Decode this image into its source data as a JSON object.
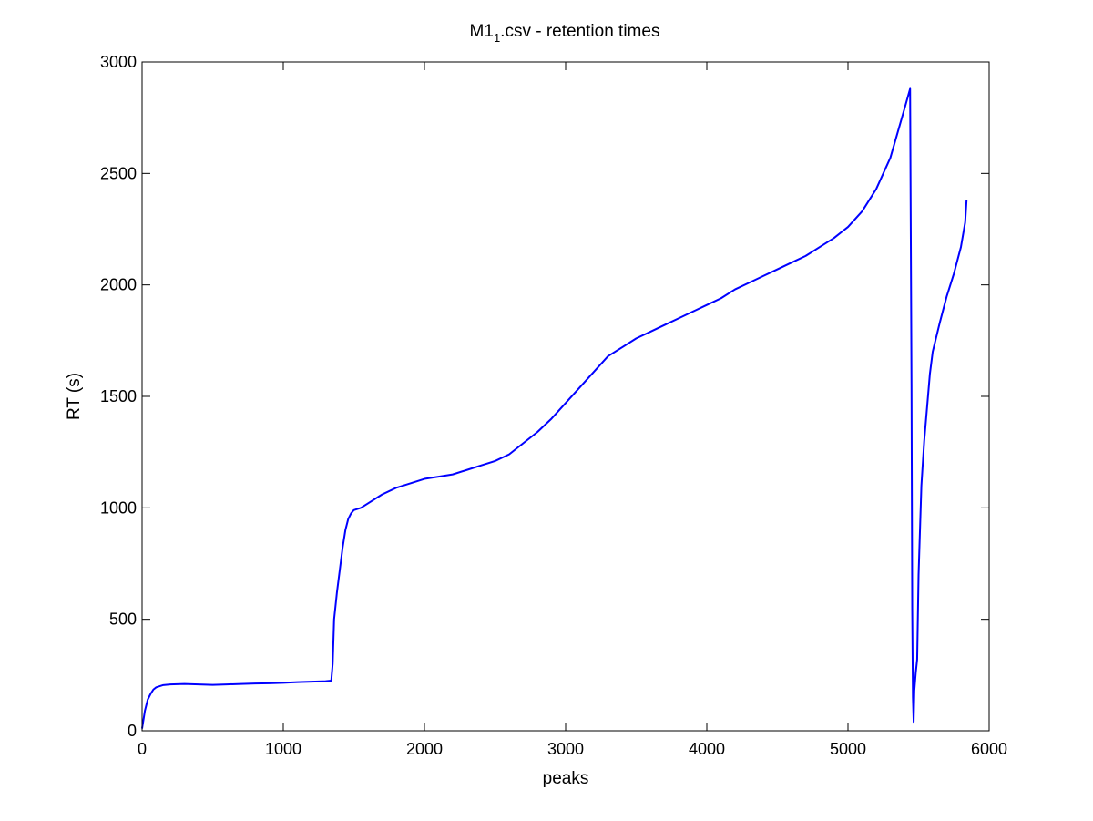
{
  "chart_data": {
    "type": "line",
    "title": {
      "main": "M1",
      "subscript": "1",
      "suffix": ".csv - retention times"
    },
    "xlabel": "peaks",
    "ylabel": "RT (s)",
    "xlim": [
      0,
      6000
    ],
    "ylim": [
      0,
      3000
    ],
    "xticks": [
      0,
      1000,
      2000,
      3000,
      4000,
      5000,
      6000
    ],
    "yticks": [
      0,
      500,
      1000,
      1500,
      2000,
      2500,
      3000
    ],
    "xtick_labels": [
      "0",
      "1000",
      "2000",
      "3000",
      "4000",
      "5000",
      "6000"
    ],
    "ytick_labels": [
      "0",
      "500",
      "1000",
      "1500",
      "2000",
      "2500",
      "3000"
    ],
    "grid": false,
    "legend": "none",
    "series": [
      {
        "color": "#0000ff",
        "x": [
          0,
          20,
          40,
          60,
          80,
          100,
          150,
          200,
          300,
          400,
          500,
          600,
          700,
          800,
          900,
          1000,
          1100,
          1200,
          1300,
          1340,
          1350,
          1360,
          1380,
          1400,
          1420,
          1440,
          1460,
          1480,
          1500,
          1550,
          1600,
          1700,
          1800,
          1900,
          2000,
          2100,
          2200,
          2300,
          2400,
          2500,
          2600,
          2700,
          2800,
          2900,
          3000,
          3100,
          3200,
          3300,
          3400,
          3500,
          3600,
          3700,
          3800,
          3900,
          4000,
          4100,
          4200,
          4300,
          4400,
          4500,
          4600,
          4700,
          4800,
          4900,
          5000,
          5100,
          5200,
          5300,
          5350,
          5400,
          5440,
          5450,
          5455,
          5460,
          5465,
          5470,
          5480,
          5490,
          5500,
          5520,
          5540,
          5560,
          5580,
          5600,
          5650,
          5700,
          5750,
          5800,
          5830,
          5840
        ],
        "values": [
          10,
          90,
          140,
          165,
          185,
          195,
          205,
          208,
          210,
          208,
          206,
          208,
          210,
          212,
          213,
          215,
          218,
          220,
          222,
          225,
          300,
          500,
          620,
          720,
          820,
          900,
          950,
          975,
          990,
          1000,
          1020,
          1060,
          1090,
          1110,
          1130,
          1140,
          1150,
          1170,
          1190,
          1210,
          1240,
          1290,
          1340,
          1400,
          1470,
          1540,
          1610,
          1680,
          1720,
          1760,
          1790,
          1820,
          1850,
          1880,
          1910,
          1940,
          1980,
          2010,
          2040,
          2070,
          2100,
          2130,
          2170,
          2210,
          2260,
          2330,
          2430,
          2570,
          2680,
          2790,
          2880,
          1550,
          550,
          150,
          40,
          180,
          260,
          320,
          700,
          1100,
          1300,
          1450,
          1600,
          1700,
          1830,
          1950,
          2050,
          2170,
          2280,
          2380
        ]
      }
    ]
  }
}
